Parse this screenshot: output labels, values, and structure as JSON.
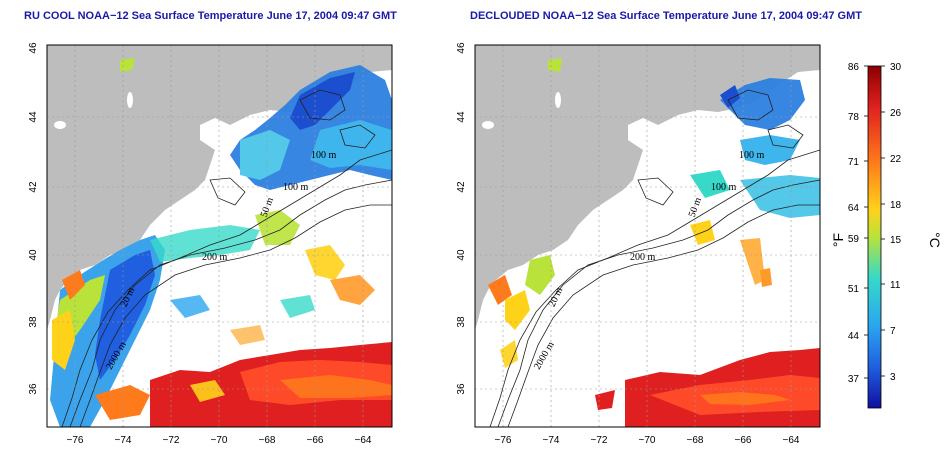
{
  "panels": [
    {
      "id": "left",
      "title": "RU COOL NOAA−12 Sea Surface Temperature June 17, 2004 09:47 GMT"
    },
    {
      "id": "right",
      "title": "DECLOUDED NOAA−12 Sea Surface Temperature June 17, 2004 09:47 GMT"
    }
  ],
  "axes": {
    "lon_ticks": [
      "−76",
      "−74",
      "−72",
      "−70",
      "−68",
      "−66",
      "−64"
    ],
    "lat_ticks": [
      "36",
      "38",
      "40",
      "42",
      "44",
      "46"
    ]
  },
  "contour_labels": {
    "left": [
      "200 m",
      "100 m",
      "100 m",
      "50 m",
      "20 m",
      "2000 m"
    ],
    "right": [
      "200 m",
      "100 m",
      "100 m",
      "50 m",
      "20 m",
      "2000 m"
    ]
  },
  "colorbar": {
    "fahrenheit_ticks": [
      "86",
      "78",
      "71",
      "64",
      "59",
      "51",
      "44",
      "37"
    ],
    "celsius_ticks": [
      "30",
      "26",
      "22",
      "18",
      "15",
      "11",
      "7",
      "3"
    ],
    "fahrenheit_unit": "°F",
    "celsius_unit": "°C",
    "colors": [
      "#8b0000",
      "#e02020",
      "#ff7a1a",
      "#ffd21a",
      "#b9e23a",
      "#37d9c8",
      "#2aa6f0",
      "#1f5fe0",
      "#1010a0"
    ]
  },
  "colors": {
    "land": "#bdbdbd",
    "grid": "#9a9a9a",
    "title": "#1a1aa8"
  }
}
